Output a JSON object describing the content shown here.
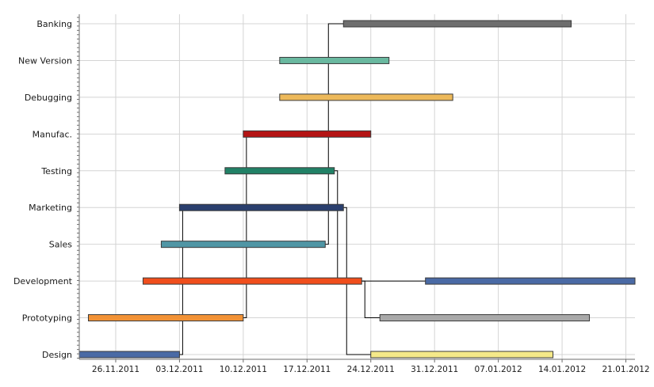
{
  "chart_data": {
    "type": "gantt",
    "title": "",
    "xlabel": "",
    "ylabel": "",
    "grid": true,
    "legend": "none",
    "xlim": [
      "2011-11-22",
      "2012-01-22"
    ],
    "x_tick_labels": [
      "26.11.2011",
      "03.12.2011",
      "10.12.2011",
      "17.12.2011",
      "24.12.2011",
      "31.12.2011",
      "07.01.2012",
      "14.01.2012",
      "21.01.2012"
    ],
    "categories": [
      "Design",
      "Prototyping",
      "Development",
      "Sales",
      "Marketing",
      "Testing",
      "Manufac.",
      "Debugging",
      "New Version",
      "Banking"
    ],
    "tasks": [
      {
        "category": "Design",
        "start": "2011-11-22",
        "end": "2011-12-03",
        "color": "#4a6aa5"
      },
      {
        "category": "Design",
        "start": "2011-12-24",
        "end": "2012-01-13",
        "color": "#f5e989"
      },
      {
        "category": "Prototyping",
        "start": "2011-11-23",
        "end": "2011-12-10",
        "color": "#f29235"
      },
      {
        "category": "Prototyping",
        "start": "2011-12-25",
        "end": "2012-01-17",
        "color": "#a9a9a9"
      },
      {
        "category": "Development",
        "start": "2011-11-29",
        "end": "2011-12-23",
        "color": "#f04e1c"
      },
      {
        "category": "Development",
        "start": "2011-12-30",
        "end": "2012-01-22",
        "color": "#4a6aa5"
      },
      {
        "category": "Sales",
        "start": "2011-12-01",
        "end": "2011-12-19",
        "color": "#5096a5"
      },
      {
        "category": "Marketing",
        "start": "2011-12-03",
        "end": "2011-12-21",
        "color": "#2a3f6e"
      },
      {
        "category": "Testing",
        "start": "2011-12-08",
        "end": "2011-12-20",
        "color": "#218166"
      },
      {
        "category": "Manufac.",
        "start": "2011-12-10",
        "end": "2011-12-24",
        "color": "#b41414"
      },
      {
        "category": "Debugging",
        "start": "2011-12-14",
        "end": "2012-01-02",
        "color": "#edb95a"
      },
      {
        "category": "New Version",
        "start": "2011-12-14",
        "end": "2011-12-26",
        "color": "#6ab9a0"
      },
      {
        "category": "Banking",
        "start": "2011-12-21",
        "end": "2012-01-15",
        "color": "#6e6e6e"
      }
    ]
  }
}
